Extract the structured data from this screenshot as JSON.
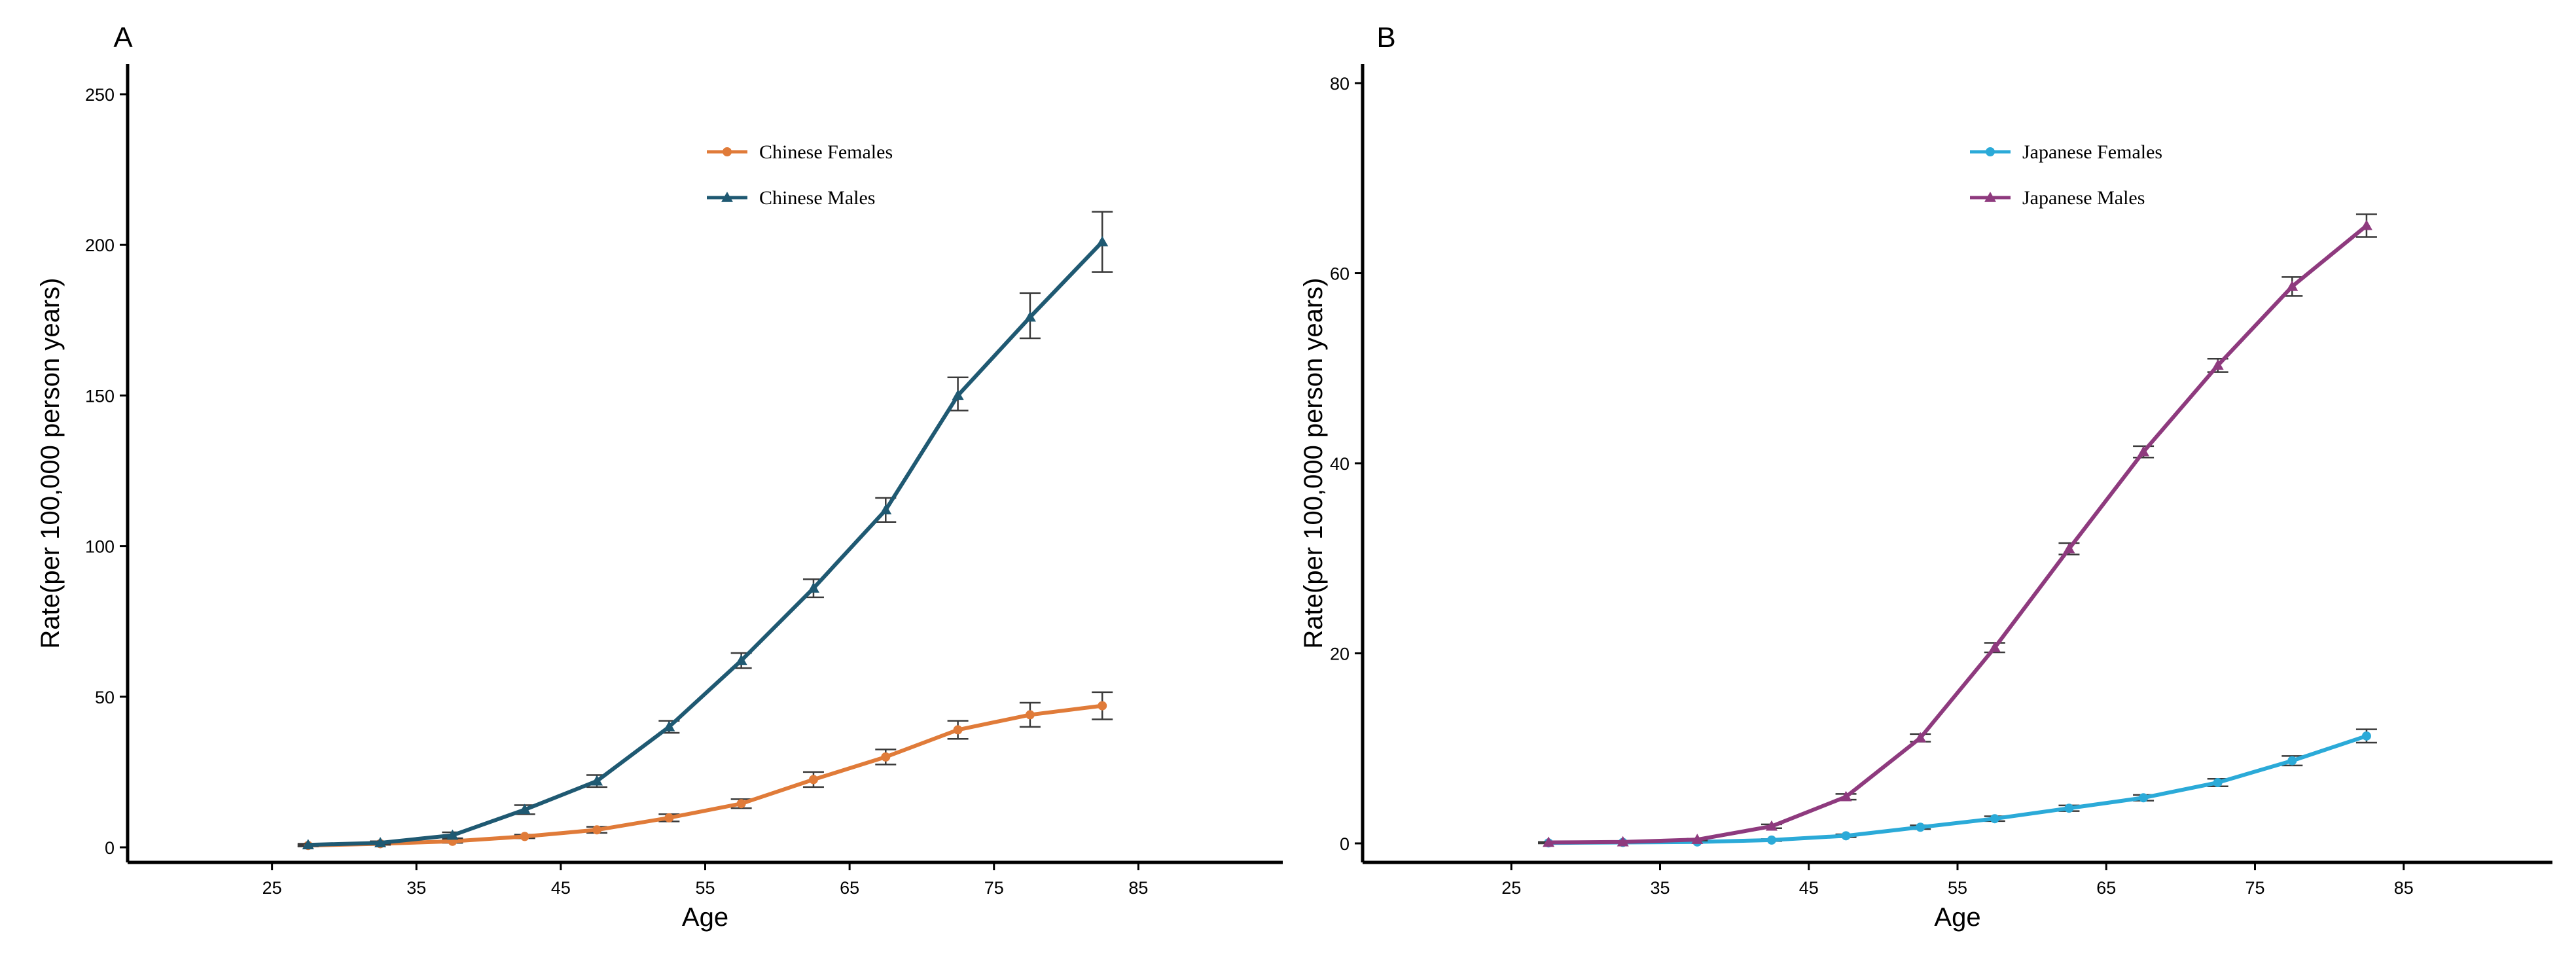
{
  "chart_data": [
    {
      "type": "line",
      "panel_label": "A",
      "xlabel": "Age",
      "ylabel": "Rate(per 100,000 person years)",
      "xlim": [
        15,
        95
      ],
      "ylim": [
        -5,
        260
      ],
      "xticks": [
        25,
        35,
        45,
        55,
        65,
        75,
        85
      ],
      "yticks": [
        0,
        50,
        100,
        150,
        200,
        250
      ],
      "legend_position": "top-center",
      "series": [
        {
          "name": "Chinese Females",
          "color": "#E07B39",
          "marker": "circle",
          "x": [
            27.5,
            32.5,
            37.5,
            42.5,
            47.5,
            52.5,
            57.5,
            62.5,
            67.5,
            72.5,
            77.5,
            82.5
          ],
          "values": [
            0.6,
            1.2,
            2.0,
            3.6,
            5.8,
            9.8,
            14.5,
            22.5,
            30.0,
            39.0,
            44.0,
            47.0
          ],
          "lower": [
            0.3,
            0.8,
            1.5,
            3.0,
            4.8,
            8.6,
            13.0,
            20.0,
            27.5,
            36.0,
            40.0,
            42.5
          ],
          "upper": [
            0.9,
            1.6,
            2.5,
            4.2,
            6.8,
            11.0,
            16.0,
            25.0,
            32.5,
            42.0,
            48.0,
            51.5
          ]
        },
        {
          "name": "Chinese Males",
          "color": "#1F5972",
          "marker": "triangle",
          "x": [
            27.5,
            32.5,
            37.5,
            42.5,
            47.5,
            52.5,
            57.5,
            62.5,
            67.5,
            72.5,
            77.5,
            82.5
          ],
          "values": [
            0.8,
            1.5,
            4.0,
            12.5,
            22.0,
            40.0,
            62.0,
            86.0,
            112.0,
            150.0,
            176.0,
            201.0
          ],
          "lower": [
            0.4,
            1.0,
            3.0,
            11.0,
            20.0,
            38.0,
            59.5,
            83.0,
            108.0,
            145.0,
            169.0,
            191.0
          ],
          "upper": [
            1.2,
            2.0,
            5.0,
            14.0,
            24.0,
            42.0,
            64.5,
            89.0,
            116.0,
            156.0,
            184.0,
            211.0
          ]
        }
      ]
    },
    {
      "type": "line",
      "panel_label": "B",
      "xlabel": "Age",
      "ylabel": "Rate(per 100,000 person years)",
      "xlim": [
        15,
        95
      ],
      "ylim": [
        -2,
        82
      ],
      "xticks": [
        25,
        35,
        45,
        55,
        65,
        75,
        85
      ],
      "yticks": [
        0,
        20,
        40,
        60,
        80
      ],
      "legend_position": "top-center",
      "series": [
        {
          "name": "Japanese Females",
          "color": "#2BAAD8",
          "marker": "circle",
          "x": [
            27.5,
            32.5,
            37.5,
            42.5,
            47.5,
            52.5,
            57.5,
            62.5,
            67.5,
            72.5,
            77.5,
            82.5
          ],
          "values": [
            0.05,
            0.1,
            0.15,
            0.35,
            0.8,
            1.7,
            2.6,
            3.7,
            4.8,
            6.4,
            8.7,
            11.3
          ],
          "lower": [
            0.0,
            0.05,
            0.1,
            0.25,
            0.65,
            1.5,
            2.35,
            3.4,
            4.5,
            6.0,
            8.2,
            10.6
          ],
          "upper": [
            0.1,
            0.15,
            0.2,
            0.45,
            0.95,
            1.9,
            2.85,
            4.0,
            5.1,
            6.8,
            9.2,
            12.0
          ]
        },
        {
          "name": "Japanese Males",
          "color": "#8E3A7E",
          "marker": "triangle",
          "x": [
            27.5,
            32.5,
            37.5,
            42.5,
            47.5,
            52.5,
            57.5,
            62.5,
            67.5,
            72.5,
            77.5,
            82.5
          ],
          "values": [
            0.1,
            0.15,
            0.4,
            1.8,
            4.9,
            11.1,
            20.6,
            31.0,
            41.2,
            50.3,
            58.6,
            65.0
          ],
          "lower": [
            0.05,
            0.1,
            0.3,
            1.6,
            4.6,
            10.7,
            20.1,
            30.4,
            40.6,
            49.6,
            57.6,
            63.8
          ],
          "upper": [
            0.15,
            0.2,
            0.5,
            2.0,
            5.2,
            11.5,
            21.1,
            31.6,
            41.8,
            51.0,
            59.6,
            66.2
          ]
        }
      ]
    }
  ]
}
